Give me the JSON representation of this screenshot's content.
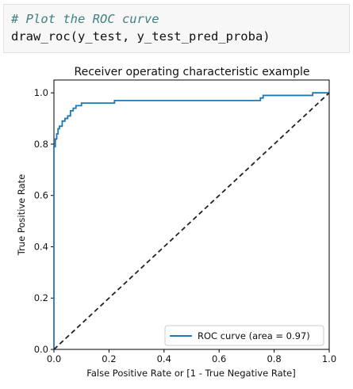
{
  "code_cell": {
    "comment": "# Plot the ROC curve",
    "call": "draw_roc(y_test, y_test_pred_proba)"
  },
  "colors": {
    "roc_line": "#1f77b4",
    "diagonal": "#222222",
    "comment": "#408080"
  },
  "chart_data": {
    "type": "line",
    "title": "Receiver operating characteristic example",
    "xlabel": "False Positive Rate or [1 - True Negative Rate]",
    "ylabel": "True Positive Rate",
    "xlim": [
      0.0,
      1.0
    ],
    "ylim": [
      0.0,
      1.05
    ],
    "xticks": [
      0.0,
      0.2,
      0.4,
      0.6,
      0.8,
      1.0
    ],
    "yticks": [
      0.0,
      0.2,
      0.4,
      0.6,
      0.8,
      1.0
    ],
    "tick_labels_x": [
      "0.0",
      "0.2",
      "0.4",
      "0.6",
      "0.8",
      "1.0"
    ],
    "tick_labels_y": [
      "0.0",
      "0.2",
      "0.4",
      "0.6",
      "0.8",
      "1.0"
    ],
    "grid": false,
    "legend_position": "lower-right",
    "series": [
      {
        "name": "ROC curve (area = 0.97)",
        "style": "solid",
        "x": [
          0.0,
          0.0,
          0.005,
          0.005,
          0.01,
          0.01,
          0.015,
          0.015,
          0.02,
          0.02,
          0.03,
          0.03,
          0.04,
          0.04,
          0.05,
          0.05,
          0.06,
          0.06,
          0.07,
          0.07,
          0.08,
          0.08,
          0.1,
          0.1,
          0.22,
          0.22,
          0.75,
          0.75,
          0.76,
          0.76,
          0.94,
          0.94,
          1.0
        ],
        "y": [
          0.0,
          0.79,
          0.79,
          0.82,
          0.82,
          0.84,
          0.84,
          0.86,
          0.86,
          0.87,
          0.87,
          0.89,
          0.89,
          0.9,
          0.9,
          0.91,
          0.91,
          0.93,
          0.93,
          0.94,
          0.94,
          0.95,
          0.95,
          0.96,
          0.96,
          0.97,
          0.97,
          0.98,
          0.98,
          0.99,
          0.99,
          1.0,
          1.0
        ]
      },
      {
        "name": "",
        "style": "dashed",
        "x": [
          0.0,
          1.0
        ],
        "y": [
          0.0,
          1.0
        ]
      }
    ]
  }
}
